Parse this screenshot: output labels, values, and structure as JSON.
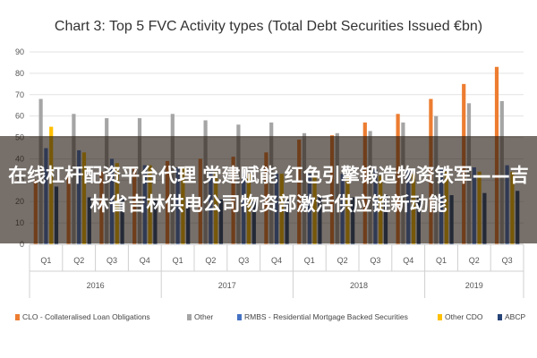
{
  "chart_data": {
    "type": "bar",
    "title": "Chart 3: Top 5 FVC Activity types (Total Debt Securities Issued €bn)",
    "xlabel": "",
    "ylabel": "",
    "ylim": [
      0,
      90
    ],
    "yticks": [
      0,
      10,
      20,
      30,
      40,
      50,
      60,
      70,
      80,
      90
    ],
    "grid": true,
    "legend_position": "bottom",
    "categories": [
      "Q1",
      "Q2",
      "Q3",
      "Q4",
      "Q1",
      "Q2",
      "Q3",
      "Q4",
      "Q1",
      "Q2",
      "Q3",
      "Q4",
      "Q1",
      "Q2",
      "Q3"
    ],
    "year_groups": [
      {
        "label": "2016",
        "quarters": 4
      },
      {
        "label": "2017",
        "quarters": 4
      },
      {
        "label": "2018",
        "quarters": 4
      },
      {
        "label": "2019",
        "quarters": 3
      }
    ],
    "series": [
      {
        "name": "CLO - Collateralised Loan Obligations",
        "color": "#ED7D31",
        "values": [
          30,
          33,
          34,
          36,
          39,
          40,
          41,
          43,
          49,
          51,
          57,
          61,
          68,
          75,
          83
        ]
      },
      {
        "name": "Other",
        "color": "#A5A5A5",
        "values": [
          68,
          61,
          59,
          59,
          61,
          58,
          56,
          57,
          52,
          52,
          53,
          57,
          60,
          66,
          67
        ]
      },
      {
        "name": "RMBS - Residential Mortgage Backed Securities",
        "color": "#4472C4",
        "values": [
          45,
          44,
          40,
          37,
          36,
          34,
          33,
          33,
          33,
          33,
          35,
          35,
          36,
          36,
          37
        ]
      },
      {
        "name": "Other CDO",
        "color": "#FFC000",
        "values": [
          55,
          43,
          38,
          37,
          36,
          34,
          33,
          33,
          32,
          32,
          32,
          33,
          34,
          34,
          34
        ]
      },
      {
        "name": "ABCP",
        "color": "#264478",
        "values": [
          27,
          22,
          22,
          21,
          20,
          21,
          20,
          21,
          22,
          22,
          23,
          22,
          23,
          24,
          25
        ]
      }
    ]
  },
  "overlay": {
    "text": "在线杠杆配资平台代理 党建赋能 红色引擎锻造物资铁军——吉林省吉林供电公司物资部激活供应链新动能"
  }
}
